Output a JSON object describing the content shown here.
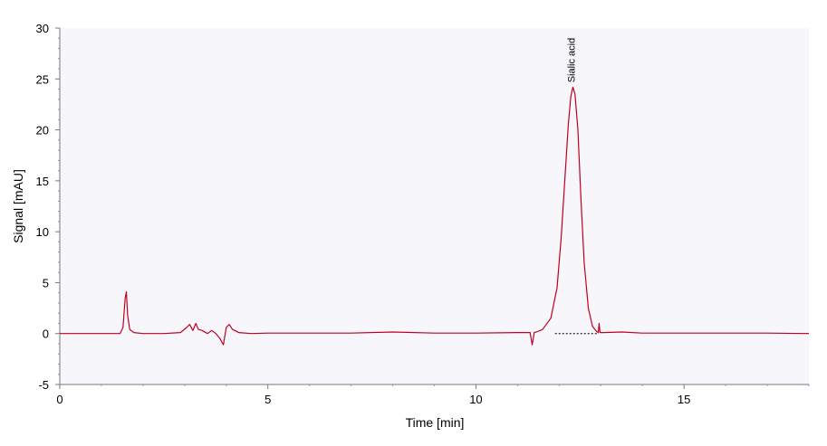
{
  "chart_data": {
    "type": "line",
    "title": "",
    "xlabel": "Time [min]",
    "ylabel": "Signal [mAU]",
    "xlim": [
      0,
      18
    ],
    "ylim": [
      -5,
      30
    ],
    "x_ticks": [
      0,
      5,
      10,
      15
    ],
    "x_tick_labels": [
      "0",
      "5",
      "10",
      "15"
    ],
    "y_ticks": [
      -5,
      0,
      5,
      10,
      15,
      20,
      25,
      30
    ],
    "y_tick_labels": [
      "-5",
      "0",
      "5",
      "10",
      "15",
      "20",
      "25",
      "30"
    ],
    "grid": false,
    "plot_background": "#f7f6fb",
    "series": [
      {
        "color": "#c0001e",
        "x": [
          0,
          1.45,
          1.52,
          1.57,
          1.6,
          1.63,
          1.68,
          1.78,
          2.0,
          2.5,
          2.9,
          3.05,
          3.12,
          3.2,
          3.27,
          3.33,
          3.42,
          3.55,
          3.65,
          3.75,
          3.85,
          3.93,
          4.0,
          4.07,
          4.15,
          4.3,
          4.6,
          5.0,
          6.0,
          7.0,
          8.0,
          9.0,
          10.0,
          11.0,
          11.3,
          11.35,
          11.4,
          11.45,
          11.6,
          11.8,
          11.95,
          12.05,
          12.15,
          12.22,
          12.28,
          12.33,
          12.38,
          12.45,
          12.52,
          12.6,
          12.7,
          12.8,
          12.9,
          12.94,
          12.96,
          12.98,
          13.05,
          13.5,
          14.0,
          15.0,
          16.0,
          17.0,
          18.0
        ],
        "y": [
          0.0,
          0.0,
          0.6,
          3.4,
          4.1,
          1.8,
          0.4,
          0.1,
          0.0,
          0.0,
          0.1,
          0.6,
          0.9,
          0.3,
          1.0,
          0.4,
          0.3,
          0.0,
          0.3,
          0.0,
          -0.5,
          -1.1,
          0.6,
          0.9,
          0.4,
          0.1,
          0.0,
          0.05,
          0.05,
          0.05,
          0.15,
          0.05,
          0.05,
          0.1,
          0.1,
          -1.1,
          0.1,
          0.15,
          0.4,
          1.5,
          4.5,
          9.5,
          16.0,
          20.5,
          23.3,
          24.2,
          23.5,
          20.0,
          13.5,
          7.0,
          2.5,
          0.7,
          0.2,
          0.1,
          1.0,
          0.1,
          0.1,
          0.15,
          0.05,
          0.05,
          0.05,
          0.05,
          0.0
        ]
      }
    ],
    "baseline": {
      "color": "#000000",
      "style": "dashed",
      "x": [
        11.9,
        12.95
      ],
      "y": [
        0.0,
        0.0
      ]
    },
    "annotations": [
      {
        "text": "Sialic acid",
        "x": 12.33,
        "y": 24.2
      }
    ]
  }
}
